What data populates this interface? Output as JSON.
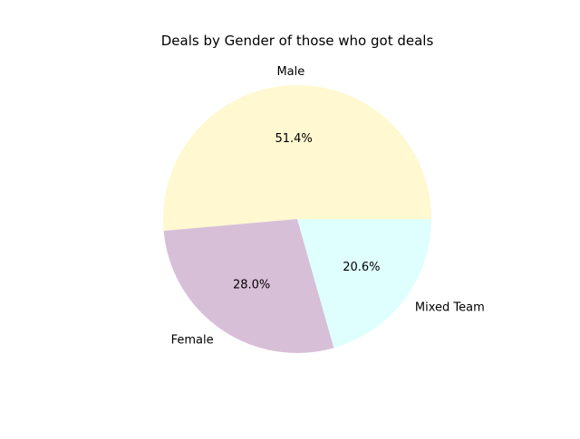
{
  "chart_data": {
    "type": "pie",
    "title": "Deals by Gender of those who got deals",
    "start_angle_deg": 0,
    "direction": "counterclockwise",
    "slices": [
      {
        "label": "Male",
        "value": 51.4,
        "pct_label": "51.4%",
        "color": "#fff8d0"
      },
      {
        "label": "Female",
        "value": 28.0,
        "pct_label": "28.0%",
        "color": "#d8bfd8"
      },
      {
        "label": "Mixed Team",
        "value": 20.6,
        "pct_label": "20.6%",
        "color": "#dfffff"
      }
    ]
  }
}
